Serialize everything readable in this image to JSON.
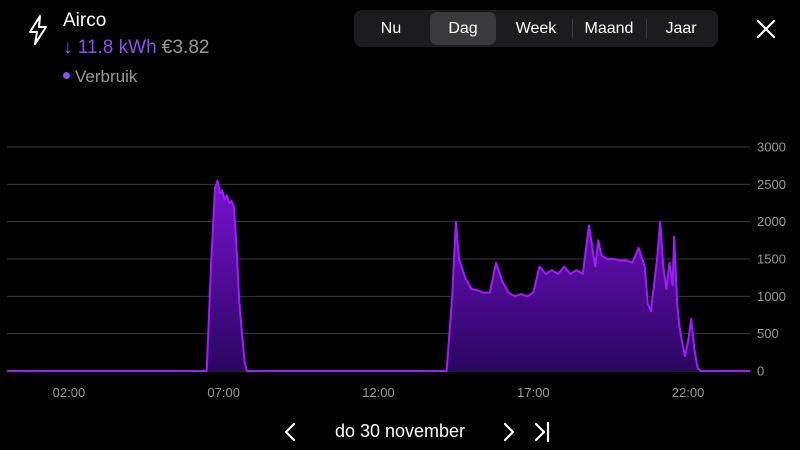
{
  "header": {
    "icon": "bolt-icon",
    "title": "Airco",
    "usage_arrow": "↓",
    "usage_kwh": "11.8 kWh",
    "usage_cost": "€3.82",
    "legend_label": "Verbruik"
  },
  "period_tabs": [
    {
      "label": "Nu",
      "active": false
    },
    {
      "label": "Dag",
      "active": true
    },
    {
      "label": "Week",
      "active": false
    },
    {
      "label": "Maand",
      "active": false
    },
    {
      "label": "Jaar",
      "active": false
    }
  ],
  "close_icon": "close-icon",
  "footer": {
    "date_label": "do 30 november",
    "prev_icon": "chevron-left-icon",
    "next_icon": "chevron-right-icon",
    "last_icon": "skip-to-end-icon"
  },
  "colors": {
    "accent": "#8b4ff0",
    "series_line": "#a21cff",
    "fill_top": "#7a12d4",
    "fill_bottom": "#2a0660",
    "grid": "#3a3a3c",
    "muted_text": "#9a9a9e",
    "tab_active_bg": "#3a3a3c",
    "tab_bg": "#1c1c1e"
  },
  "chart_data": {
    "type": "area",
    "title": "",
    "xlabel": "",
    "ylabel": "",
    "y_axis_side": "right",
    "ylim": [
      0,
      3000
    ],
    "yticks": [
      0,
      500,
      1000,
      1500,
      2000,
      2500,
      3000
    ],
    "x_range_hours": [
      0,
      24
    ],
    "xtick_labels": [
      "02:00",
      "07:00",
      "12:00",
      "17:00",
      "22:00"
    ],
    "xtick_hours": [
      2,
      7,
      12,
      17,
      22
    ],
    "grid": true,
    "series": [
      {
        "name": "Verbruik",
        "unit": "W",
        "x_hours": [
          0,
          6.45,
          6.6,
          6.72,
          6.8,
          6.88,
          6.95,
          7.03,
          7.1,
          7.18,
          7.25,
          7.33,
          7.4,
          7.5,
          7.6,
          7.68,
          7.75,
          7.85,
          14.2,
          14.38,
          14.5,
          14.6,
          14.8,
          15.0,
          15.2,
          15.4,
          15.6,
          15.8,
          16.0,
          16.2,
          16.4,
          16.6,
          16.8,
          17.0,
          17.2,
          17.4,
          17.6,
          17.8,
          18.0,
          18.2,
          18.4,
          18.6,
          18.8,
          19.0,
          19.1,
          19.2,
          19.4,
          19.6,
          19.8,
          20.0,
          20.2,
          20.4,
          20.6,
          20.7,
          20.8,
          21.0,
          21.1,
          21.2,
          21.3,
          21.4,
          21.5,
          21.55,
          21.65,
          21.72,
          21.8,
          21.9,
          22.0,
          22.1,
          22.2,
          22.3,
          22.4,
          22.5,
          22.7,
          24
        ],
        "values": [
          0,
          0,
          1500,
          2450,
          2550,
          2380,
          2420,
          2300,
          2350,
          2250,
          2280,
          2200,
          1750,
          950,
          450,
          100,
          0,
          0,
          0,
          1000,
          2000,
          1500,
          1250,
          1100,
          1080,
          1050,
          1050,
          1450,
          1200,
          1050,
          1000,
          1030,
          1000,
          1050,
          1400,
          1300,
          1350,
          1300,
          1400,
          1300,
          1350,
          1300,
          1950,
          1400,
          1750,
          1550,
          1500,
          1500,
          1480,
          1480,
          1450,
          1650,
          1400,
          900,
          800,
          1500,
          2000,
          1400,
          1100,
          1450,
          1150,
          1800,
          900,
          600,
          400,
          200,
          400,
          700,
          300,
          50,
          0,
          0,
          0,
          0
        ]
      }
    ]
  }
}
